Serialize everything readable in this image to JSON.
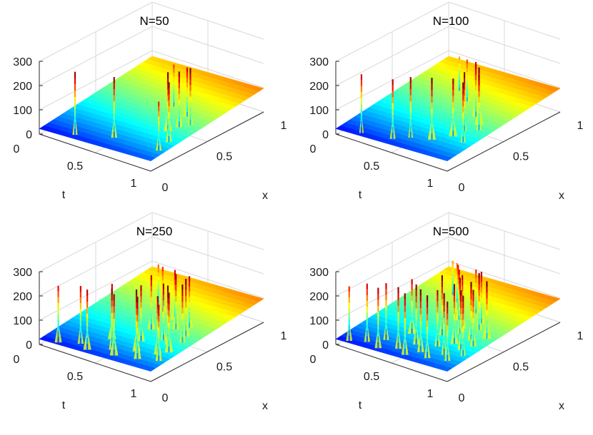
{
  "figure": {
    "colormap": "jet",
    "colormap_stops": [
      "#00008f",
      "#0000ff",
      "#00ffff",
      "#ffff00",
      "#ff0000",
      "#800000"
    ]
  },
  "chart_data": [
    {
      "type": "surface",
      "title": "N=50",
      "xlabel": "x",
      "ylabel": "t",
      "zlabel": "",
      "xlim": [
        0,
        1
      ],
      "ylim": [
        0,
        1
      ],
      "zlim": [
        0,
        300
      ],
      "xticks": [
        "0",
        "0.5",
        "1"
      ],
      "yticks": [
        "0",
        "0.5",
        "1"
      ],
      "zticks": [
        "0",
        "100",
        "200",
        "300"
      ],
      "grid": true,
      "spikes": [
        {
          "x": 0.04,
          "t": 0.28,
          "z": 290
        },
        {
          "x": 0.12,
          "t": 0.55,
          "z": 290
        },
        {
          "x": 0.12,
          "t": 0.95,
          "z": 250
        },
        {
          "x": 0.23,
          "t": 0.93,
          "z": 300
        },
        {
          "x": 0.33,
          "t": 0.82,
          "z": 300
        },
        {
          "x": 0.4,
          "t": 0.85,
          "z": 290
        },
        {
          "x": 0.45,
          "t": 0.9,
          "z": 300
        },
        {
          "x": 0.52,
          "t": 0.8,
          "z": 270
        },
        {
          "x": 0.58,
          "t": 0.62,
          "z": 240
        }
      ]
    },
    {
      "type": "surface",
      "title": "N=100",
      "xlabel": "x",
      "ylabel": "t",
      "zlabel": "",
      "xlim": [
        0,
        1
      ],
      "ylim": [
        0,
        1
      ],
      "zlim": [
        0,
        300
      ],
      "xticks": [
        "0",
        "0.5",
        "1"
      ],
      "yticks": [
        "0",
        "0.5",
        "1"
      ],
      "zticks": [
        "0",
        "100",
        "200",
        "300"
      ],
      "grid": true,
      "spikes": [
        {
          "x": 0.03,
          "t": 0.2,
          "z": 270
        },
        {
          "x": 0.06,
          "t": 0.45,
          "z": 280
        },
        {
          "x": 0.12,
          "t": 0.55,
          "z": 290
        },
        {
          "x": 0.16,
          "t": 0.7,
          "z": 300
        },
        {
          "x": 0.22,
          "t": 0.92,
          "z": 300
        },
        {
          "x": 0.25,
          "t": 0.8,
          "z": 290
        },
        {
          "x": 0.33,
          "t": 0.82,
          "z": 300
        },
        {
          "x": 0.38,
          "t": 0.9,
          "z": 290
        },
        {
          "x": 0.43,
          "t": 0.85,
          "z": 300
        },
        {
          "x": 0.5,
          "t": 0.75,
          "z": 280
        },
        {
          "x": 0.55,
          "t": 0.7,
          "z": 270
        },
        {
          "x": 0.62,
          "t": 0.55,
          "z": 240
        },
        {
          "x": 0.7,
          "t": 0.4,
          "z": 210
        }
      ]
    },
    {
      "type": "surface",
      "title": "N=250",
      "xlabel": "x",
      "ylabel": "t",
      "zlabel": "",
      "xlim": [
        0,
        1
      ],
      "ylim": [
        0,
        1
      ],
      "zlim": [
        0,
        300
      ],
      "xticks": [
        "0",
        "0.5",
        "1"
      ],
      "yticks": [
        "0",
        "0.5",
        "1"
      ],
      "zticks": [
        "0",
        "100",
        "200",
        "300"
      ],
      "grid": true,
      "spikes": [
        {
          "x": 0.02,
          "t": 0.15,
          "z": 260
        },
        {
          "x": 0.03,
          "t": 0.4,
          "z": 280
        },
        {
          "x": 0.05,
          "t": 0.62,
          "z": 290
        },
        {
          "x": 0.07,
          "t": 0.3,
          "z": 270
        },
        {
          "x": 0.08,
          "t": 0.8,
          "z": 300
        },
        {
          "x": 0.1,
          "t": 0.55,
          "z": 290
        },
        {
          "x": 0.12,
          "t": 0.95,
          "z": 280
        },
        {
          "x": 0.15,
          "t": 0.72,
          "z": 300
        },
        {
          "x": 0.18,
          "t": 0.88,
          "z": 290
        },
        {
          "x": 0.2,
          "t": 0.45,
          "z": 270
        },
        {
          "x": 0.23,
          "t": 0.93,
          "z": 300
        },
        {
          "x": 0.26,
          "t": 0.65,
          "z": 280
        },
        {
          "x": 0.3,
          "t": 0.85,
          "z": 300
        },
        {
          "x": 0.33,
          "t": 0.78,
          "z": 290
        },
        {
          "x": 0.36,
          "t": 0.92,
          "z": 300
        },
        {
          "x": 0.4,
          "t": 0.6,
          "z": 280
        },
        {
          "x": 0.43,
          "t": 0.88,
          "z": 300
        },
        {
          "x": 0.47,
          "t": 0.75,
          "z": 290
        },
        {
          "x": 0.52,
          "t": 0.82,
          "z": 280
        },
        {
          "x": 0.56,
          "t": 0.65,
          "z": 270
        },
        {
          "x": 0.6,
          "t": 0.5,
          "z": 250
        },
        {
          "x": 0.66,
          "t": 0.4,
          "z": 230
        }
      ]
    },
    {
      "type": "surface",
      "title": "N=500",
      "xlabel": "x",
      "ylabel": "t",
      "zlabel": "",
      "xlim": [
        0,
        1
      ],
      "ylim": [
        0,
        1
      ],
      "zlim": [
        0,
        300
      ],
      "xticks": [
        "0",
        "0.5",
        "1"
      ],
      "yticks": [
        "0",
        "0.5",
        "1"
      ],
      "zticks": [
        "0",
        "100",
        "200",
        "300"
      ],
      "grid": true,
      "spikes": [
        {
          "x": 0.02,
          "t": 0.1,
          "z": 250
        },
        {
          "x": 0.03,
          "t": 0.35,
          "z": 280
        },
        {
          "x": 0.04,
          "t": 0.58,
          "z": 290
        },
        {
          "x": 0.06,
          "t": 0.22,
          "z": 270
        },
        {
          "x": 0.07,
          "t": 0.75,
          "z": 300
        },
        {
          "x": 0.08,
          "t": 0.48,
          "z": 290
        },
        {
          "x": 0.1,
          "t": 0.9,
          "z": 290
        },
        {
          "x": 0.11,
          "t": 0.65,
          "z": 300
        },
        {
          "x": 0.13,
          "t": 0.32,
          "z": 270
        },
        {
          "x": 0.15,
          "t": 0.82,
          "z": 300
        },
        {
          "x": 0.17,
          "t": 0.55,
          "z": 290
        },
        {
          "x": 0.19,
          "t": 0.95,
          "z": 300
        },
        {
          "x": 0.21,
          "t": 0.7,
          "z": 280
        },
        {
          "x": 0.24,
          "t": 0.88,
          "z": 300
        },
        {
          "x": 0.26,
          "t": 0.42,
          "z": 270
        },
        {
          "x": 0.28,
          "t": 0.78,
          "z": 300
        },
        {
          "x": 0.31,
          "t": 0.92,
          "z": 290
        },
        {
          "x": 0.33,
          "t": 0.62,
          "z": 300
        },
        {
          "x": 0.36,
          "t": 0.85,
          "z": 300
        },
        {
          "x": 0.39,
          "t": 0.72,
          "z": 290
        },
        {
          "x": 0.42,
          "t": 0.93,
          "z": 300
        },
        {
          "x": 0.45,
          "t": 0.68,
          "z": 280
        },
        {
          "x": 0.48,
          "t": 0.8,
          "z": 300
        },
        {
          "x": 0.52,
          "t": 0.58,
          "z": 270
        },
        {
          "x": 0.55,
          "t": 0.75,
          "z": 280
        },
        {
          "x": 0.59,
          "t": 0.5,
          "z": 260
        },
        {
          "x": 0.63,
          "t": 0.62,
          "z": 250
        },
        {
          "x": 0.68,
          "t": 0.4,
          "z": 230
        },
        {
          "x": 0.74,
          "t": 0.3,
          "z": 210
        }
      ]
    }
  ]
}
